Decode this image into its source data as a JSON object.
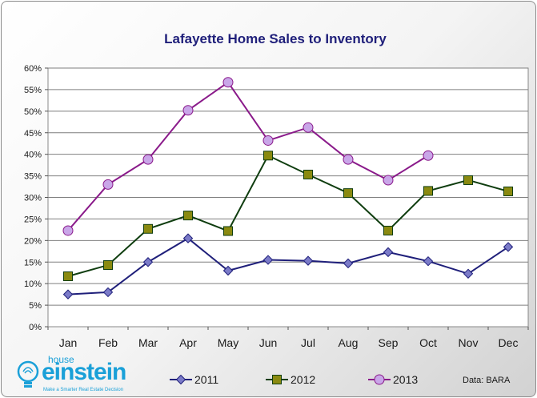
{
  "chart_data": {
    "type": "line",
    "title": "Lafayette Home Sales to Inventory",
    "categories": [
      "Jan",
      "Feb",
      "Mar",
      "Apr",
      "May",
      "Jun",
      "Jul",
      "Aug",
      "Sep",
      "Oct",
      "Nov",
      "Dec"
    ],
    "y_ticks": [
      "0%",
      "5%",
      "10%",
      "15%",
      "20%",
      "25%",
      "30%",
      "35%",
      "40%",
      "45%",
      "50%",
      "55%",
      "60%"
    ],
    "ylim": [
      0,
      60
    ],
    "grid": true,
    "legend_position": "bottom",
    "series": [
      {
        "name": "2011",
        "color": "#1f1f7a",
        "marker_fill": "#7b7bc8",
        "marker": "diamond",
        "values": [
          7.5,
          8,
          15,
          20.5,
          13,
          15.5,
          15.3,
          14.7,
          17.3,
          15.2,
          12.3,
          18.5
        ]
      },
      {
        "name": "2012",
        "color": "#0f3d0f",
        "marker_fill": "#8a8a10",
        "marker": "square",
        "values": [
          11.7,
          14.3,
          22.7,
          25.8,
          22.2,
          39.7,
          35.3,
          31,
          22.3,
          31.5,
          34,
          31.4
        ]
      },
      {
        "name": "2013",
        "color": "#8a1a8a",
        "marker_fill": "#c9a6e8",
        "marker": "circle",
        "values": [
          22.3,
          33,
          38.8,
          50.2,
          56.7,
          43.2,
          46.2,
          38.8,
          34,
          39.7,
          null,
          null
        ]
      }
    ],
    "source": "Data: BARA"
  },
  "logo": {
    "top": "house",
    "main": "einstein",
    "tagline": "Make a Smarter Real Estate Decision",
    "icon": "lightbulb-icon"
  }
}
